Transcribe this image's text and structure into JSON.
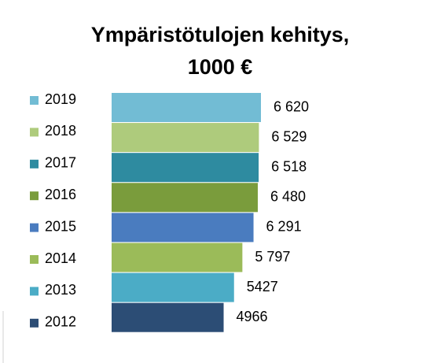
{
  "chart_data": {
    "type": "bar",
    "orientation": "horizontal",
    "title": "Ympäristötulojen kehitys, 1000 €",
    "categories": [
      "2019",
      "2018",
      "2017",
      "2016",
      "2015",
      "2014",
      "2013",
      "2012"
    ],
    "values": [
      6620,
      6529,
      6518,
      6480,
      6291,
      5797,
      5427,
      4966
    ],
    "value_labels": [
      "6 620",
      "6 529",
      "6 518",
      "6 480",
      "6 291",
      "5 797",
      "5427",
      "4966"
    ],
    "colors": [
      "#72bcd4",
      "#aecb7c",
      "#2e8ba0",
      "#7a9c3c",
      "#4a7cbf",
      "#9bbb59",
      "#4bacc6",
      "#2c4d75"
    ],
    "legend": "left"
  }
}
